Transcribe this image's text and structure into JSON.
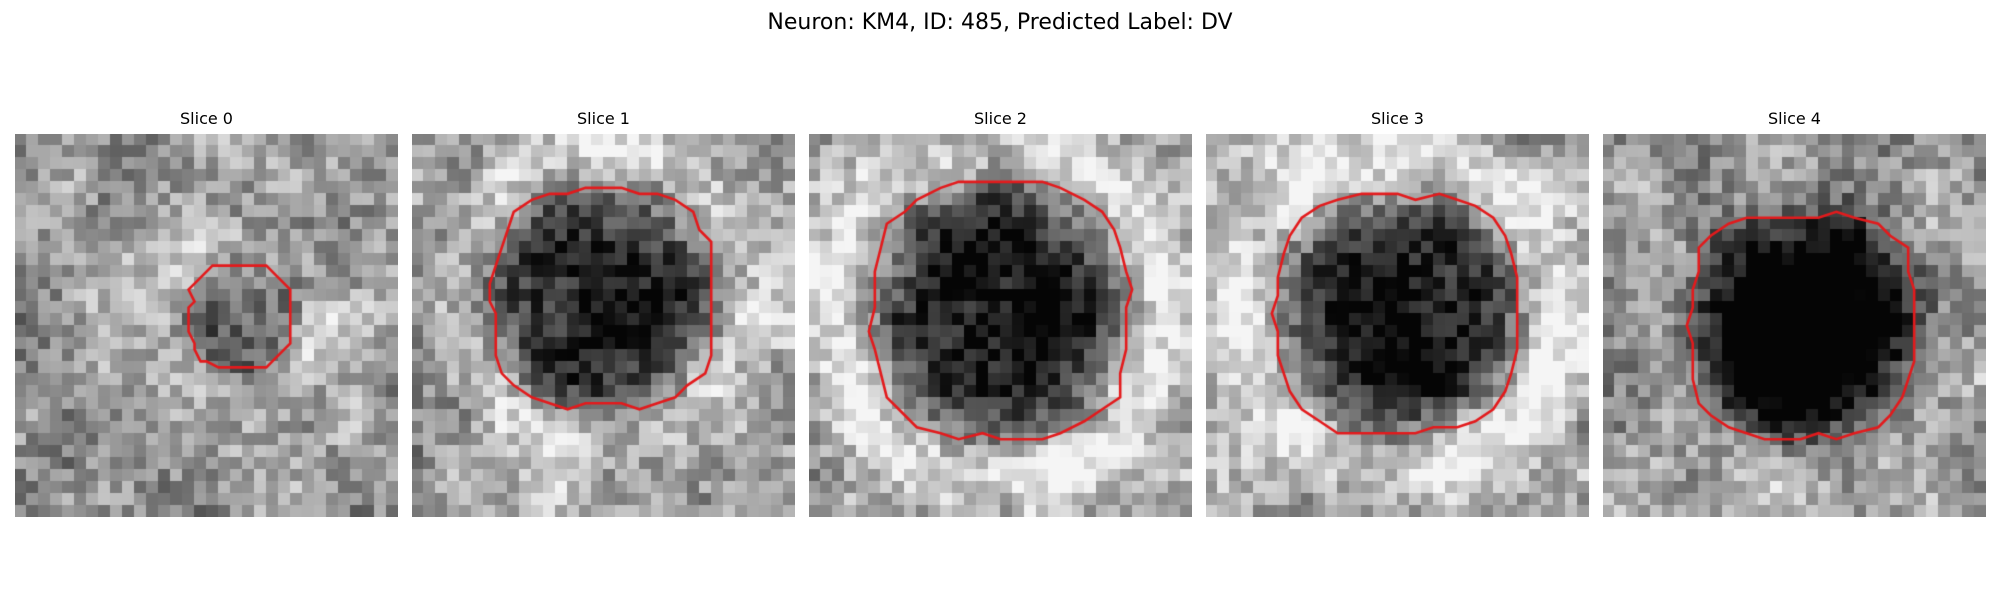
{
  "figure": {
    "title": "Neuron: KM4, ID: 485, Predicted Label: DV"
  },
  "colors": {
    "contour": "#e31a1c",
    "background": "#ffffff"
  },
  "panels": [
    {
      "title": "Slice 0",
      "seed": 11,
      "center": [
        0.59,
        0.48
      ],
      "blob_radius": 0.16,
      "darkness": 0.3,
      "surround": 0.15,
      "contour_radius": 0.14
    },
    {
      "title": "Slice 1",
      "seed": 23,
      "center": [
        0.5,
        0.43
      ],
      "blob_radius": 0.3,
      "darkness": 0.55,
      "surround": 0.25,
      "contour_radius": 0.3
    },
    {
      "title": "Slice 2",
      "seed": 37,
      "center": [
        0.5,
        0.46
      ],
      "blob_radius": 0.34,
      "darkness": 0.55,
      "surround": 0.3,
      "contour_radius": 0.35
    },
    {
      "title": "Slice 3",
      "seed": 41,
      "center": [
        0.5,
        0.47
      ],
      "blob_radius": 0.33,
      "darkness": 0.55,
      "surround": 0.3,
      "contour_radius": 0.33
    },
    {
      "title": "Slice 4",
      "seed": 53,
      "center": [
        0.52,
        0.5
      ],
      "blob_radius": 0.3,
      "darkness": 0.8,
      "surround": 0.05,
      "contour_radius": 0.31
    }
  ]
}
